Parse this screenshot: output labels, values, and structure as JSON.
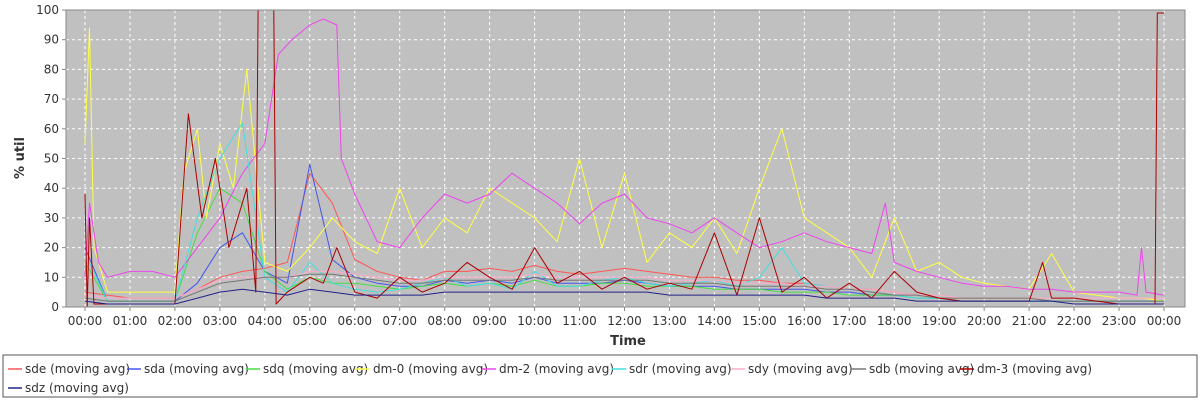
{
  "chart_data": {
    "type": "line",
    "xlabel": "Time",
    "ylabel": "% util",
    "ylim": [
      0,
      100
    ],
    "xlim": [
      0,
      24
    ],
    "grid": true,
    "background_color": "#c0c0c0",
    "legend_placement": "bottom",
    "x_ticks": [
      "00:00",
      "01:00",
      "02:00",
      "03:00",
      "04:00",
      "05:00",
      "06:00",
      "07:00",
      "08:00",
      "09:00",
      "10:00",
      "11:00",
      "12:00",
      "13:00",
      "14:00",
      "15:00",
      "16:00",
      "17:00",
      "18:00",
      "19:00",
      "20:00",
      "21:00",
      "22:00",
      "23:00",
      "00:00"
    ],
    "y_ticks": [
      "0",
      "10",
      "20",
      "30",
      "40",
      "50",
      "60",
      "70",
      "80",
      "90",
      "100"
    ],
    "series": [
      {
        "name": "sde (moving avg)",
        "color": "#ff5555",
        "x": [
          0,
          0.5,
          1,
          1.5,
          2,
          2.5,
          3,
          3.5,
          4,
          4.5,
          5,
          5.5,
          6,
          6.5,
          7,
          7.5,
          8,
          8.5,
          9,
          9.5,
          10,
          10.5,
          11,
          11.5,
          12,
          12.5,
          13,
          13.5,
          14,
          14.5,
          15,
          15.5,
          16,
          16.5,
          17,
          17.5,
          18,
          18.5,
          19,
          19.5,
          20,
          20.5,
          21,
          21.5,
          22,
          22.5,
          23,
          23.5,
          24
        ],
        "values": [
          5,
          4,
          3,
          3,
          3,
          6,
          10,
          12,
          13,
          15,
          45,
          35,
          16,
          12,
          10,
          9,
          12,
          12,
          13,
          12,
          14,
          12,
          11,
          12,
          13,
          12,
          11,
          10,
          10,
          9,
          9,
          8,
          8,
          7,
          6,
          6,
          5,
          4,
          3,
          3,
          3,
          3,
          3,
          2,
          2,
          2,
          2,
          2,
          2
        ]
      },
      {
        "name": "sda (moving avg)",
        "color": "#4455ee",
        "x": [
          0,
          0.5,
          1,
          1.5,
          2,
          2.5,
          3,
          3.5,
          4,
          4.5,
          5,
          5.5,
          6,
          6.5,
          7,
          7.5,
          8,
          8.5,
          9,
          9.5,
          10,
          10.5,
          11,
          11.5,
          12,
          12.5,
          13,
          13.5,
          14,
          14.5,
          15,
          15.5,
          16,
          16.5,
          17,
          17.5,
          18,
          18.5,
          19,
          19.5,
          20,
          20.5,
          21,
          21.5,
          22,
          22.5,
          23,
          23.5,
          24
        ],
        "values": [
          20,
          2,
          2,
          2,
          2,
          8,
          20,
          25,
          12,
          8,
          48,
          16,
          10,
          8,
          7,
          7,
          9,
          8,
          9,
          8,
          10,
          8,
          8,
          8,
          9,
          8,
          7,
          7,
          7,
          6,
          6,
          6,
          6,
          5,
          5,
          4,
          4,
          3,
          3,
          2,
          2,
          2,
          2,
          2,
          2,
          2,
          2,
          2,
          2
        ]
      },
      {
        "name": "sdq (moving avg)",
        "color": "#44dd44",
        "x": [
          0,
          0.5,
          1,
          1.5,
          2,
          2.5,
          3,
          3.5,
          4,
          4.5,
          5,
          5.5,
          6,
          6.5,
          7,
          7.5,
          8,
          8.5,
          9,
          9.5,
          10,
          10.5,
          11,
          11.5,
          12,
          12.5,
          13,
          13.5,
          14,
          14.5,
          15,
          15.5,
          16,
          16.5,
          17,
          17.5,
          18,
          18.5,
          19,
          19.5,
          20,
          20.5,
          21,
          21.5,
          22,
          22.5,
          23,
          23.5,
          24
        ],
        "values": [
          15,
          2,
          2,
          2,
          2,
          25,
          40,
          35,
          12,
          6,
          10,
          8,
          8,
          7,
          6,
          7,
          8,
          7,
          8,
          7,
          9,
          7,
          7,
          8,
          8,
          7,
          7,
          7,
          6,
          6,
          6,
          5,
          5,
          5,
          4,
          4,
          4,
          3,
          3,
          2,
          2,
          2,
          2,
          2,
          2,
          2,
          2,
          2,
          2
        ]
      },
      {
        "name": "dm-0 (moving avg)",
        "color": "#ffff44",
        "x": [
          0,
          0.1,
          0.2,
          0.5,
          1,
          1.5,
          2,
          2.2,
          2.5,
          2.7,
          3,
          3.3,
          3.6,
          4,
          4.5,
          5,
          5.5,
          6,
          6.5,
          7,
          7.5,
          8,
          8.5,
          9,
          9.5,
          10,
          10.5,
          11,
          11.5,
          12,
          12.5,
          13,
          13.5,
          14,
          14.5,
          15,
          15.5,
          16,
          16.5,
          17,
          17.5,
          18,
          18.5,
          19,
          19.5,
          20,
          20.5,
          21,
          21.5,
          22,
          22.5,
          23,
          23.5,
          24
        ],
        "values": [
          55,
          94,
          20,
          5,
          5,
          5,
          5,
          45,
          60,
          30,
          55,
          40,
          80,
          15,
          12,
          20,
          30,
          22,
          18,
          40,
          20,
          30,
          25,
          40,
          35,
          30,
          22,
          50,
          20,
          45,
          15,
          25,
          20,
          30,
          18,
          40,
          60,
          30,
          25,
          20,
          10,
          30,
          12,
          15,
          10,
          8,
          7,
          6,
          18,
          5,
          4,
          3,
          3,
          2
        ]
      },
      {
        "name": "dm-2 (moving avg)",
        "color": "#ee44ee",
        "x": [
          0,
          0.1,
          0.3,
          0.5,
          1,
          1.5,
          2,
          2.5,
          3,
          3.5,
          4,
          4.3,
          4.6,
          5,
          5.3,
          5.6,
          5.7,
          6,
          6.5,
          7,
          7.5,
          8,
          8.5,
          9,
          9.5,
          10,
          10.5,
          11,
          11.5,
          12,
          12.5,
          13,
          13.5,
          14,
          14.5,
          15,
          15.5,
          16,
          16.5,
          17,
          17.5,
          17.8,
          18,
          18.5,
          19,
          19.5,
          20,
          20.5,
          21,
          21.5,
          22,
          22.5,
          23,
          23.4,
          23.5,
          23.6,
          24
        ],
        "values": [
          10,
          35,
          15,
          10,
          12,
          12,
          10,
          20,
          30,
          45,
          55,
          85,
          90,
          95,
          97,
          95,
          50,
          38,
          22,
          20,
          30,
          38,
          35,
          38,
          45,
          40,
          35,
          28,
          35,
          38,
          30,
          28,
          25,
          30,
          25,
          20,
          22,
          25,
          22,
          20,
          18,
          35,
          15,
          12,
          10,
          8,
          7,
          7,
          6,
          6,
          5,
          5,
          5,
          4,
          20,
          5,
          4
        ]
      },
      {
        "name": "sdr (moving avg)",
        "color": "#44dddd",
        "x": [
          0,
          0.5,
          1,
          1.5,
          2,
          2.5,
          3,
          3.5,
          4,
          4.5,
          5,
          5.5,
          6,
          6.5,
          7,
          7.5,
          8,
          8.5,
          9,
          9.5,
          10,
          10.5,
          11,
          11.5,
          12,
          12.5,
          13,
          13.5,
          14,
          14.5,
          15,
          15.5,
          16,
          16.5,
          17,
          17.5,
          18,
          18.5,
          19,
          19.5,
          20,
          20.5,
          21,
          21.5,
          22,
          22.5,
          23,
          23.5,
          24
        ],
        "values": [
          18,
          2,
          2,
          2,
          2,
          30,
          50,
          62,
          10,
          5,
          15,
          8,
          6,
          5,
          6,
          8,
          10,
          7,
          8,
          6,
          12,
          7,
          7,
          9,
          10,
          8,
          7,
          8,
          9,
          7,
          10,
          20,
          8,
          7,
          6,
          5,
          4,
          3,
          3,
          2,
          2,
          2,
          2,
          2,
          2,
          2,
          2,
          2,
          2
        ]
      },
      {
        "name": "sdy (moving avg)",
        "color": "#ffaacc",
        "x": [
          0,
          0.5,
          1,
          1.5,
          2,
          2.5,
          3,
          3.5,
          4,
          4.5,
          5,
          5.5,
          6,
          6.5,
          7,
          7.5,
          8,
          8.5,
          9,
          9.5,
          10,
          10.5,
          11,
          11.5,
          12,
          12.5,
          13,
          13.5,
          14,
          14.5,
          15,
          15.5,
          16,
          16.5,
          17,
          17.5,
          18,
          18.5,
          19,
          19.5,
          20,
          20.5,
          21,
          21.5,
          22,
          22.5,
          23,
          23.5,
          24
        ],
        "values": [
          4,
          3,
          3,
          3,
          3,
          6,
          9,
          10,
          10,
          10,
          12,
          12,
          11,
          10,
          9,
          9,
          10,
          10,
          10,
          10,
          11,
          10,
          10,
          10,
          10,
          10,
          9,
          9,
          9,
          8,
          8,
          8,
          7,
          7,
          6,
          6,
          5,
          4,
          4,
          3,
          3,
          3,
          3,
          3,
          3,
          3,
          3,
          3,
          3
        ]
      },
      {
        "name": "sdb (moving avg)",
        "color": "#777777",
        "x": [
          0,
          0.5,
          1,
          1.5,
          2,
          2.5,
          3,
          3.5,
          4,
          4.5,
          5,
          5.5,
          6,
          6.5,
          7,
          7.5,
          8,
          8.5,
          9,
          9.5,
          10,
          10.5,
          11,
          11.5,
          12,
          12.5,
          13,
          13.5,
          14,
          14.5,
          15,
          15.5,
          16,
          16.5,
          17,
          17.5,
          18,
          18.5,
          19,
          19.5,
          20,
          20.5,
          21,
          21.5,
          22,
          22.5,
          23,
          23.5,
          24
        ],
        "values": [
          3,
          2,
          2,
          2,
          2,
          5,
          8,
          9,
          10,
          10,
          11,
          11,
          10,
          9,
          8,
          8,
          9,
          9,
          9,
          9,
          10,
          9,
          9,
          9,
          9,
          9,
          8,
          8,
          8,
          7,
          7,
          7,
          7,
          6,
          6,
          5,
          4,
          4,
          3,
          3,
          3,
          3,
          3,
          2,
          2,
          2,
          2,
          2,
          2
        ]
      },
      {
        "name": "dm-3 (moving avg)",
        "color": "#aa0000",
        "x": [
          0,
          0.05,
          0.1,
          0.2,
          0.5,
          1,
          1.5,
          2,
          2.3,
          2.6,
          2.9,
          3.2,
          3.6,
          3.8,
          3.85,
          4.2,
          4.25,
          4.5,
          5,
          5.3,
          5.6,
          6,
          6.5,
          7,
          7.5,
          8,
          8.5,
          9,
          9.5,
          10,
          10.5,
          11,
          11.5,
          12,
          12.5,
          13,
          13.5,
          14,
          14.5,
          15,
          15.5,
          16,
          16.5,
          17,
          17.5,
          18,
          18.5,
          19,
          19.5,
          20,
          20.5,
          21,
          21.3,
          21.5,
          22,
          22.5,
          23,
          23.5,
          23.8,
          23.85,
          24
        ],
        "values": [
          38,
          0,
          30,
          1,
          1,
          1,
          1,
          1,
          65,
          30,
          50,
          20,
          40,
          5,
          100,
          100,
          1,
          5,
          10,
          8,
          20,
          5,
          3,
          10,
          5,
          8,
          15,
          10,
          6,
          20,
          8,
          12,
          6,
          10,
          6,
          8,
          6,
          25,
          4,
          30,
          5,
          10,
          3,
          8,
          3,
          12,
          5,
          3,
          2,
          2,
          2,
          2,
          15,
          3,
          3,
          2,
          1,
          1,
          1,
          99,
          99
        ]
      },
      {
        "name": "sdz (moving avg)",
        "color": "#222288",
        "x": [
          0,
          0.5,
          1,
          1.5,
          2,
          2.5,
          3,
          3.5,
          4,
          4.5,
          5,
          5.5,
          6,
          6.5,
          7,
          7.5,
          8,
          8.5,
          9,
          9.5,
          10,
          10.5,
          11,
          11.5,
          12,
          12.5,
          13,
          13.5,
          14,
          14.5,
          15,
          15.5,
          16,
          16.5,
          17,
          17.5,
          18,
          18.5,
          19,
          19.5,
          20,
          20.5,
          21,
          21.5,
          22,
          22.5,
          23,
          23.5,
          24
        ],
        "values": [
          2,
          1,
          1,
          1,
          1,
          3,
          5,
          6,
          5,
          4,
          6,
          5,
          4,
          4,
          4,
          4,
          5,
          5,
          5,
          5,
          5,
          5,
          5,
          5,
          5,
          5,
          4,
          4,
          4,
          4,
          4,
          4,
          4,
          3,
          3,
          3,
          3,
          2,
          2,
          2,
          2,
          2,
          2,
          2,
          1,
          1,
          1,
          1,
          1
        ]
      }
    ]
  }
}
